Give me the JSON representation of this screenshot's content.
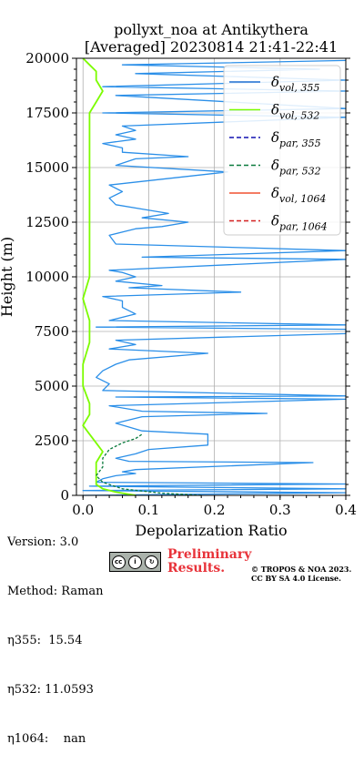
{
  "chart_data": {
    "type": "line",
    "title_line1": "pollyxt_noa at Antikythera",
    "title_line2": "[Averaged] 20230814 21:41-22:41",
    "xlabel": "Depolarization Ratio",
    "ylabel": "Height (m)",
    "xlim": [
      -0.01,
      0.4
    ],
    "ylim": [
      0,
      20000
    ],
    "x_ticks": [
      "0.0",
      "0.1",
      "0.2",
      "0.3",
      "0.4"
    ],
    "y_ticks": [
      "0",
      "2500",
      "5000",
      "7500",
      "10000",
      "12500",
      "15000",
      "17500",
      "20000"
    ],
    "grid": true,
    "legend_position": "top-right",
    "legend": [
      {
        "base": "δ",
        "sub": "vol, 355",
        "color": "#1f6fd1",
        "style": "solid"
      },
      {
        "base": "δ",
        "sub": "vol, 532",
        "color": "#7cfc00",
        "style": "solid"
      },
      {
        "base": "δ",
        "sub": "par, 355",
        "color": "#1010b0",
        "style": "dashed"
      },
      {
        "base": "δ",
        "sub": "par, 532",
        "color": "#0a7a3c",
        "style": "dashed"
      },
      {
        "base": "δ",
        "sub": "vol, 1064",
        "color": "#f05030",
        "style": "solid"
      },
      {
        "base": "δ",
        "sub": "par, 1064",
        "color": "#d42020",
        "style": "dashed"
      }
    ],
    "series": [
      {
        "name": "δvol,355",
        "color": "#2b8fe8",
        "points": [
          [
            0.0,
            0
          ],
          [
            0.4,
            120
          ],
          [
            0.0,
            220
          ],
          [
            0.4,
            300
          ],
          [
            0.01,
            420
          ],
          [
            0.4,
            520
          ],
          [
            0.02,
            600
          ],
          [
            0.03,
            760
          ],
          [
            0.05,
            900
          ],
          [
            0.08,
            1000
          ],
          [
            0.06,
            1080
          ],
          [
            0.08,
            1180
          ],
          [
            0.35,
            1500
          ],
          [
            0.07,
            1560
          ],
          [
            0.05,
            1700
          ],
          [
            0.08,
            1900
          ],
          [
            0.1,
            2100
          ],
          [
            0.19,
            2300
          ],
          [
            0.19,
            2800
          ],
          [
            0.09,
            2950
          ],
          [
            0.05,
            3300
          ],
          [
            0.09,
            3600
          ],
          [
            0.28,
            3750
          ],
          [
            0.09,
            3850
          ],
          [
            0.04,
            4100
          ],
          [
            0.4,
            4400
          ],
          [
            0.05,
            4500
          ],
          [
            0.4,
            4550
          ],
          [
            0.03,
            4800
          ],
          [
            0.04,
            5100
          ],
          [
            0.02,
            5400
          ],
          [
            0.03,
            5700
          ],
          [
            0.05,
            6000
          ],
          [
            0.07,
            6200
          ],
          [
            0.19,
            6500
          ],
          [
            0.04,
            6700
          ],
          [
            0.08,
            6900
          ],
          [
            0.05,
            7100
          ],
          [
            0.4,
            7400
          ],
          [
            0.4,
            7600
          ],
          [
            0.02,
            7700
          ],
          [
            0.4,
            7800
          ],
          [
            0.04,
            8000
          ],
          [
            0.08,
            8300
          ],
          [
            0.06,
            8600
          ],
          [
            0.06,
            8900
          ],
          [
            0.03,
            9100
          ],
          [
            0.24,
            9300
          ],
          [
            0.07,
            9500
          ],
          [
            0.12,
            9600
          ],
          [
            0.05,
            9800
          ],
          [
            0.08,
            10000
          ],
          [
            0.06,
            10200
          ],
          [
            0.04,
            10300
          ],
          [
            0.4,
            10800
          ],
          [
            0.09,
            10900
          ],
          [
            0.4,
            11200
          ],
          [
            0.05,
            11500
          ],
          [
            0.04,
            11900
          ],
          [
            0.08,
            12200
          ],
          [
            0.12,
            12300
          ],
          [
            0.16,
            12500
          ],
          [
            0.09,
            12700
          ],
          [
            0.13,
            12900
          ],
          [
            0.09,
            13100
          ],
          [
            0.05,
            13300
          ],
          [
            0.04,
            13600
          ],
          [
            0.06,
            13900
          ],
          [
            0.04,
            14200
          ],
          [
            0.22,
            14800
          ],
          [
            0.05,
            15100
          ],
          [
            0.08,
            15400
          ],
          [
            0.16,
            15500
          ],
          [
            0.06,
            15700
          ],
          [
            0.06,
            15900
          ],
          [
            0.03,
            16100
          ],
          [
            0.08,
            16300
          ],
          [
            0.05,
            16500
          ],
          [
            0.08,
            16700
          ],
          [
            0.06,
            16900
          ],
          [
            0.4,
            17300
          ],
          [
            0.03,
            17500
          ],
          [
            0.4,
            17700
          ],
          [
            0.05,
            18300
          ],
          [
            0.4,
            18500
          ],
          [
            0.03,
            18700
          ],
          [
            0.4,
            19000
          ],
          [
            0.08,
            19300
          ],
          [
            0.36,
            19500
          ],
          [
            0.06,
            19700
          ],
          [
            0.4,
            19900
          ]
        ]
      },
      {
        "name": "δvol,532",
        "color": "#7cfc00",
        "points": [
          [
            0.08,
            0
          ],
          [
            0.05,
            150
          ],
          [
            0.03,
            300
          ],
          [
            0.02,
            500
          ],
          [
            0.02,
            1000
          ],
          [
            0.02,
            1500
          ],
          [
            0.03,
            2000
          ],
          [
            0.02,
            2400
          ],
          [
            0.01,
            2800
          ],
          [
            0.0,
            3200
          ],
          [
            0.01,
            3700
          ],
          [
            0.01,
            4200
          ],
          [
            0.0,
            5000
          ],
          [
            0.0,
            6000
          ],
          [
            0.01,
            7000
          ],
          [
            0.01,
            8000
          ],
          [
            0.0,
            9000
          ],
          [
            0.01,
            10000
          ],
          [
            0.01,
            11000
          ],
          [
            0.01,
            12000
          ],
          [
            0.01,
            13000
          ],
          [
            0.01,
            14000
          ],
          [
            0.01,
            15000
          ],
          [
            0.01,
            16000
          ],
          [
            0.01,
            17000
          ],
          [
            0.01,
            17500
          ],
          [
            0.02,
            18000
          ],
          [
            0.03,
            18500
          ],
          [
            0.02,
            19000
          ],
          [
            0.02,
            19400
          ],
          [
            0.01,
            19700
          ],
          [
            0.0,
            20000
          ]
        ]
      },
      {
        "name": "δpar,532",
        "color": "#0a7a3c",
        "dashed": true,
        "points": [
          [
            0.18,
            0
          ],
          [
            0.12,
            100
          ],
          [
            0.06,
            300
          ],
          [
            0.03,
            600
          ],
          [
            0.02,
            900
          ],
          [
            0.03,
            1300
          ],
          [
            0.03,
            1700
          ],
          [
            0.04,
            2100
          ],
          [
            0.06,
            2400
          ],
          [
            0.08,
            2600
          ],
          [
            0.09,
            2800
          ]
        ]
      }
    ]
  },
  "info": {
    "version": "Version: 3.0",
    "method": "Method: Raman",
    "eta355_label": "η355:",
    "eta355_value": "15.54",
    "eta532_label": "η532:",
    "eta532_value": "11.0593",
    "eta1064_label": "η1064:",
    "eta1064_value": "nan"
  },
  "footer": {
    "cc_badge": "CC BY SA",
    "preliminary": "Preliminary Results.",
    "copyright_line1": "© TROPOS & NOA 2023.",
    "copyright_line2": "CC BY SA 4.0 License."
  }
}
